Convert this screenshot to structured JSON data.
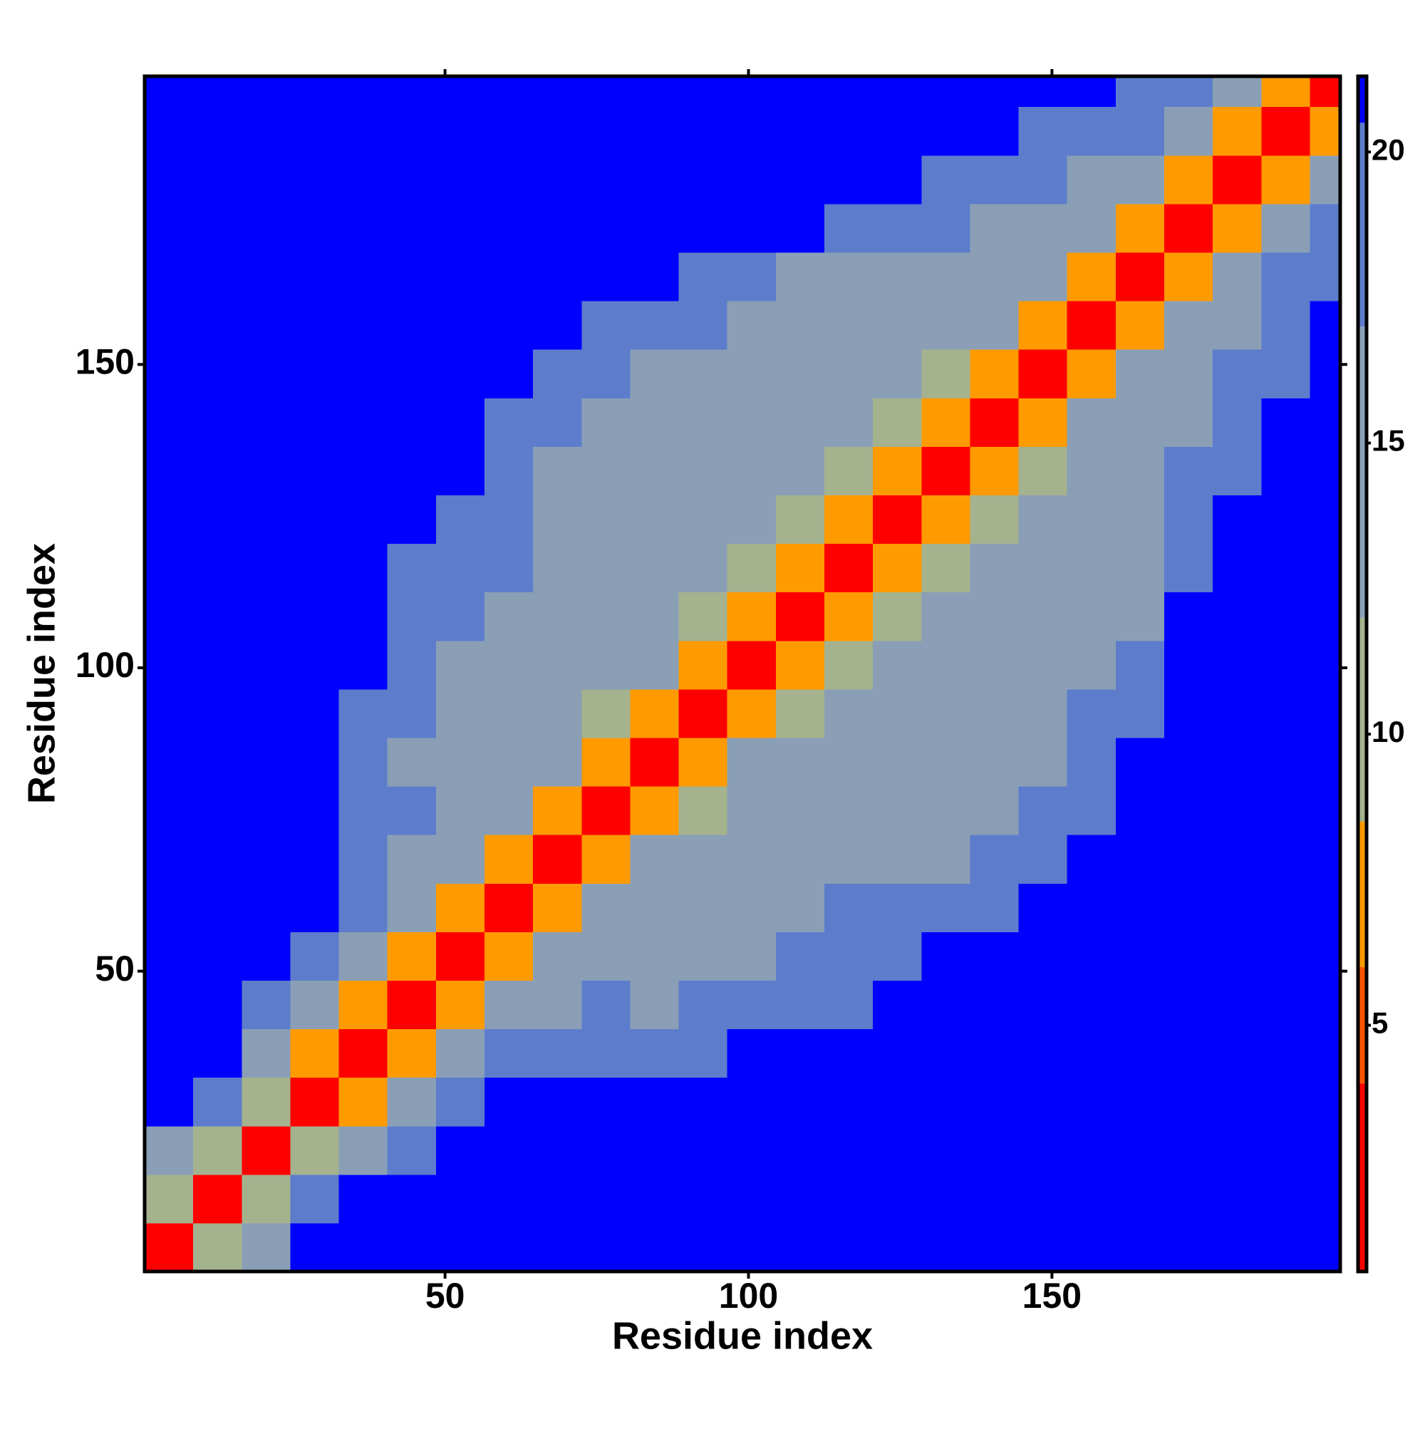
{
  "chart_data": {
    "type": "heatmap",
    "xlabel": "Residue index",
    "ylabel": "Residue index",
    "xlim": [
      0.5,
      197.5
    ],
    "ylim": [
      0.5,
      197.5
    ],
    "xticks": [
      50,
      100,
      150
    ],
    "yticks": [
      50,
      100,
      150
    ],
    "xbins": [
      0.5,
      8.5,
      16.5,
      24.5,
      32.5,
      40.5,
      48.5,
      56.5,
      64.5,
      72.5,
      80.5,
      88.5,
      96.5,
      104.5,
      112.5,
      120.5,
      128.5,
      136.5,
      144.5,
      152.5,
      160.5,
      168.5,
      176.5,
      184.5,
      192.5,
      197.5
    ],
    "ybins": [
      0.5,
      8.5,
      16.5,
      24.5,
      32.5,
      40.5,
      48.5,
      56.5,
      64.5,
      72.5,
      80.5,
      88.5,
      96.5,
      104.5,
      112.5,
      120.5,
      128.5,
      136.5,
      144.5,
      152.5,
      160.5,
      168.5,
      176.5,
      184.5,
      192.5,
      197.5
    ],
    "z": [
      [
        3,
        9,
        16,
        21,
        21,
        21,
        21,
        21,
        21,
        21,
        21,
        21,
        21,
        21,
        21,
        21,
        21,
        21,
        21,
        21,
        21,
        21,
        21,
        21,
        21
      ],
      [
        9,
        3,
        9,
        17,
        21,
        21,
        21,
        21,
        21,
        21,
        21,
        21,
        21,
        21,
        21,
        21,
        21,
        21,
        21,
        21,
        21,
        21,
        21,
        21,
        21
      ],
      [
        16,
        9,
        3,
        9,
        16,
        17,
        21,
        21,
        21,
        21,
        21,
        21,
        21,
        21,
        21,
        21,
        21,
        21,
        21,
        21,
        21,
        21,
        21,
        21,
        21
      ],
      [
        21,
        17,
        9,
        3,
        8,
        14,
        17,
        21,
        21,
        21,
        21,
        21,
        21,
        21,
        21,
        21,
        21,
        21,
        21,
        21,
        21,
        21,
        21,
        21,
        21
      ],
      [
        21,
        21,
        16,
        8,
        3,
        8,
        13,
        17,
        19,
        18,
        18,
        19,
        21,
        21,
        21,
        21,
        21,
        21,
        21,
        21,
        21,
        21,
        21,
        21,
        21
      ],
      [
        21,
        21,
        17,
        14,
        8,
        3,
        8,
        12,
        15,
        17,
        16,
        17,
        18,
        18,
        19,
        21,
        21,
        21,
        21,
        21,
        21,
        21,
        21,
        21,
        21
      ],
      [
        21,
        21,
        21,
        17,
        13,
        8,
        3,
        8,
        12,
        15,
        15,
        16,
        16,
        17,
        18,
        19,
        21,
        21,
        21,
        21,
        21,
        21,
        21,
        21,
        21
      ],
      [
        21,
        21,
        21,
        21,
        17,
        12,
        8,
        3,
        8,
        12,
        14,
        15,
        15,
        16,
        17,
        17,
        18,
        19,
        21,
        21,
        21,
        21,
        21,
        21,
        21
      ],
      [
        21,
        21,
        21,
        21,
        19,
        15,
        12,
        8,
        3,
        8,
        12,
        13,
        14,
        15,
        15,
        16,
        16,
        17,
        19,
        21,
        21,
        21,
        21,
        21,
        21
      ],
      [
        21,
        21,
        21,
        21,
        18,
        17,
        15,
        12,
        8,
        3,
        8,
        11,
        13,
        13,
        14,
        15,
        15,
        16,
        17,
        19,
        21,
        21,
        21,
        21,
        21
      ],
      [
        21,
        21,
        21,
        21,
        18,
        16,
        15,
        14,
        12,
        8,
        3,
        8,
        12,
        12,
        13,
        13,
        14,
        15,
        16,
        18,
        21,
        21,
        21,
        21,
        21
      ],
      [
        21,
        21,
        21,
        21,
        19,
        17,
        16,
        15,
        13,
        11,
        8,
        3,
        8,
        11,
        12,
        13,
        13,
        14,
        15,
        17,
        19,
        21,
        21,
        21,
        21
      ],
      [
        21,
        21,
        21,
        21,
        21,
        18,
        16,
        15,
        14,
        13,
        12,
        8,
        3,
        8,
        11,
        12,
        12,
        13,
        14,
        15,
        18,
        21,
        21,
        21,
        21
      ],
      [
        21,
        21,
        21,
        21,
        21,
        18,
        17,
        16,
        15,
        13,
        12,
        11,
        8,
        3,
        8,
        11,
        12,
        12,
        13,
        14,
        16,
        21,
        21,
        21,
        21
      ],
      [
        21,
        21,
        21,
        21,
        21,
        19,
        18,
        17,
        15,
        14,
        13,
        12,
        11,
        8,
        3,
        8,
        11,
        12,
        13,
        14,
        16,
        19,
        21,
        21,
        21
      ],
      [
        21,
        21,
        21,
        21,
        21,
        21,
        19,
        17,
        16,
        15,
        13,
        13,
        12,
        11,
        8,
        3,
        8,
        11,
        12,
        13,
        15,
        18,
        21,
        21,
        21
      ],
      [
        21,
        21,
        21,
        21,
        21,
        21,
        21,
        18,
        16,
        15,
        14,
        13,
        12,
        12,
        11,
        8,
        3,
        8,
        11,
        12,
        14,
        17,
        20,
        21,
        21
      ],
      [
        21,
        21,
        21,
        21,
        21,
        21,
        21,
        19,
        17,
        16,
        15,
        14,
        13,
        12,
        12,
        11,
        8,
        3,
        8,
        12,
        14,
        16,
        19,
        21,
        21
      ],
      [
        21,
        21,
        21,
        21,
        21,
        21,
        21,
        21,
        19,
        17,
        16,
        15,
        14,
        13,
        13,
        12,
        11,
        8,
        3,
        8,
        12,
        15,
        17,
        20,
        21
      ],
      [
        21,
        21,
        21,
        21,
        21,
        21,
        21,
        21,
        21,
        19,
        18,
        17,
        15,
        14,
        14,
        13,
        12,
        12,
        8,
        3,
        8,
        13,
        16,
        19,
        21
      ],
      [
        21,
        21,
        21,
        21,
        21,
        21,
        21,
        21,
        21,
        21,
        21,
        19,
        18,
        16,
        16,
        15,
        14,
        14,
        12,
        8,
        3,
        8,
        13,
        17,
        20
      ],
      [
        21,
        21,
        21,
        21,
        21,
        21,
        21,
        21,
        21,
        21,
        21,
        21,
        21,
        21,
        19,
        18,
        17,
        16,
        15,
        13,
        8,
        3,
        8,
        13,
        17
      ],
      [
        21,
        21,
        21,
        21,
        21,
        21,
        21,
        21,
        21,
        21,
        21,
        21,
        21,
        21,
        21,
        21,
        20,
        19,
        17,
        16,
        13,
        8,
        3,
        8,
        13
      ],
      [
        21,
        21,
        21,
        21,
        21,
        21,
        21,
        21,
        21,
        21,
        21,
        21,
        21,
        21,
        21,
        21,
        21,
        21,
        20,
        19,
        17,
        13,
        8,
        3,
        8
      ],
      [
        21,
        21,
        21,
        21,
        21,
        21,
        21,
        21,
        21,
        21,
        21,
        21,
        21,
        21,
        21,
        21,
        21,
        21,
        21,
        21,
        20,
        17,
        13,
        8,
        3
      ]
    ],
    "clim": [
      0.77,
      21.3
    ],
    "cticks": [
      5,
      10,
      15,
      20
    ],
    "color_breaks": [
      0.77,
      4,
      6,
      8.5,
      12,
      17,
      20.5,
      21.3
    ],
    "colors": [
      "#ff0000",
      "#ff5500",
      "#ff9a00",
      "#a4b28e",
      "#8a9fb6",
      "#5d7dcc",
      "#0000ff"
    ]
  }
}
